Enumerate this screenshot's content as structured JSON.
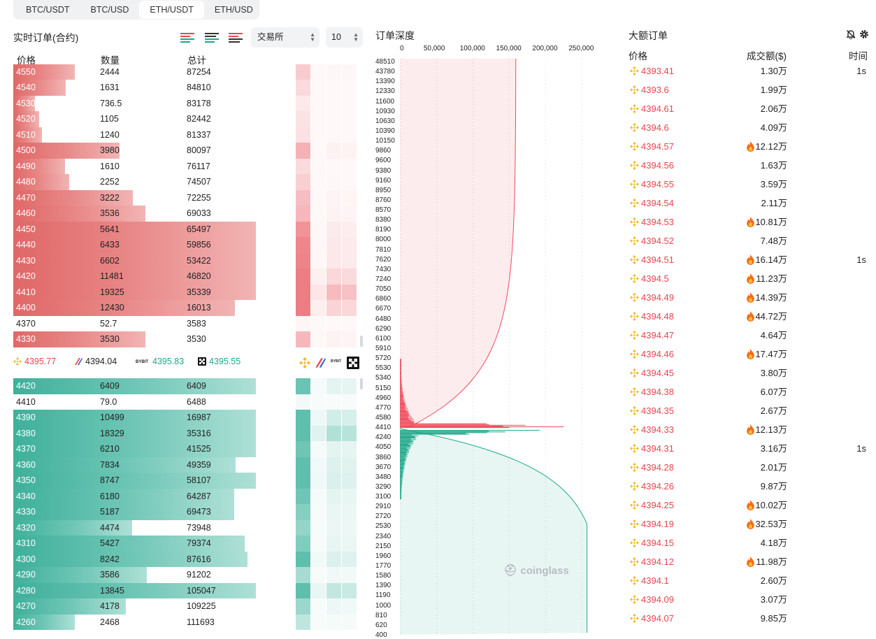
{
  "tabs": [
    "BTC/USDT",
    "BTC/USD",
    "ETH/USDT",
    "ETH/USD"
  ],
  "active_tab": 2,
  "left_panel": {
    "title": "实时订单(合约)",
    "exchange_select": "交易所",
    "depth_select": "10",
    "headers": {
      "price": "价格",
      "qty": "数量",
      "total": "总计"
    },
    "asks": [
      {
        "price": "4550",
        "qty": "2444",
        "total": "87254",
        "depth": 0.253
      },
      {
        "price": "4540",
        "qty": "1631",
        "total": "84810",
        "depth": 0.217
      },
      {
        "price": "4530",
        "qty": "736.5",
        "total": "83178",
        "depth": 0.09
      },
      {
        "price": "4520",
        "qty": "1105",
        "total": "82442",
        "depth": 0.106
      },
      {
        "price": "4510",
        "qty": "1240",
        "total": "81337",
        "depth": 0.118
      },
      {
        "price": "4500",
        "qty": "3980",
        "total": "80097",
        "depth": 0.439
      },
      {
        "price": "4490",
        "qty": "1610",
        "total": "76117",
        "depth": 0.214
      },
      {
        "price": "4480",
        "qty": "2252",
        "total": "74507",
        "depth": 0.231
      },
      {
        "price": "4470",
        "qty": "3222",
        "total": "72255",
        "depth": 0.493
      },
      {
        "price": "4460",
        "qty": "3536",
        "total": "69033",
        "depth": 0.545
      },
      {
        "price": "4450",
        "qty": "5641",
        "total": "65497",
        "depth": 1.0
      },
      {
        "price": "4440",
        "qty": "6433",
        "total": "59856",
        "depth": 1.0
      },
      {
        "price": "4430",
        "qty": "6602",
        "total": "53422",
        "depth": 1.0
      },
      {
        "price": "4420",
        "qty": "11481",
        "total": "46820",
        "depth": 1.0
      },
      {
        "price": "4410",
        "qty": "19325",
        "total": "35339",
        "depth": 1.0
      },
      {
        "price": "4400",
        "qty": "12430",
        "total": "16013",
        "depth": 0.914
      },
      {
        "price": "4370",
        "qty": "52.7",
        "total": "3583",
        "depth": 0.0
      },
      {
        "price": "4330",
        "qty": "3530",
        "total": "3530",
        "depth": 0.545
      }
    ],
    "bids": [
      {
        "price": "4420",
        "qty": "6409",
        "total": "6409",
        "depth": 1.0
      },
      {
        "price": "4410",
        "qty": "79.0",
        "total": "6488",
        "depth": 0.0
      },
      {
        "price": "4390",
        "qty": "10499",
        "total": "16987",
        "depth": 1.0
      },
      {
        "price": "4380",
        "qty": "18329",
        "total": "35316",
        "depth": 1.0
      },
      {
        "price": "4370",
        "qty": "6210",
        "total": "41525",
        "depth": 1.0
      },
      {
        "price": "4360",
        "qty": "7834",
        "total": "49359",
        "depth": 0.917
      },
      {
        "price": "4350",
        "qty": "8747",
        "total": "58107",
        "depth": 1.0
      },
      {
        "price": "4340",
        "qty": "6180",
        "total": "64287",
        "depth": 0.911
      },
      {
        "price": "4330",
        "qty": "5187",
        "total": "69473",
        "depth": 0.911
      },
      {
        "price": "4320",
        "qty": "4474",
        "total": "73948",
        "depth": 0.489
      },
      {
        "price": "4310",
        "qty": "5427",
        "total": "79374",
        "depth": 0.954
      },
      {
        "price": "4300",
        "qty": "8242",
        "total": "87616",
        "depth": 0.966
      },
      {
        "price": "4290",
        "qty": "3586",
        "total": "91202",
        "depth": 0.551
      },
      {
        "price": "4280",
        "qty": "13845",
        "total": "105047",
        "depth": 1.0
      },
      {
        "price": "4270",
        "qty": "4178",
        "total": "109225",
        "depth": 0.463
      },
      {
        "price": "4260",
        "qty": "2468",
        "total": "111693",
        "depth": 0.254
      }
    ],
    "exchange_prices": [
      {
        "exchange": "binance",
        "price": "4395.77",
        "color": "#e5464f"
      },
      {
        "exchange": "bybit-x",
        "price": "4394.04",
        "color": "#222222"
      },
      {
        "exchange": "bybit",
        "price": "4395.83",
        "color": "#1ea88a"
      },
      {
        "exchange": "okx",
        "price": "4395.55",
        "color": "#1ea88a"
      }
    ]
  },
  "depth_chart": {
    "title": "订单深度",
    "x_ticks": [
      "0",
      "50,000",
      "100,000",
      "150,000",
      "200,000",
      "250,000"
    ],
    "y_ticks": [
      "48510",
      "43780",
      "13390",
      "12330",
      "11600",
      "10930",
      "10630",
      "10390",
      "10150",
      "9860",
      "9600",
      "9380",
      "9160",
      "8950",
      "8760",
      "8570",
      "8380",
      "8190",
      "8000",
      "7810",
      "7620",
      "7430",
      "7240",
      "7050",
      "6860",
      "6670",
      "6480",
      "6290",
      "6100",
      "5910",
      "5720",
      "5530",
      "5340",
      "5150",
      "4960",
      "4770",
      "4580",
      "4410",
      "4240",
      "4050",
      "3860",
      "3670",
      "3480",
      "3290",
      "3100",
      "2910",
      "2720",
      "2530",
      "2340",
      "2150",
      "1960",
      "1770",
      "1580",
      "1390",
      "1190",
      "1000",
      "810",
      "620",
      "400"
    ],
    "watermark": "coinglass",
    "colors": {
      "ask": "#f0495a",
      "bid": "#1ea88a"
    }
  },
  "large_orders": {
    "title": "大额订单",
    "headers": {
      "price": "价格",
      "amount": "成交额($)",
      "time": "时间"
    },
    "rows": [
      {
        "price": "4393.41",
        "amount": "1.30万",
        "fire": false,
        "time": "1s"
      },
      {
        "price": "4393.6",
        "amount": "1.99万",
        "fire": false,
        "time": ""
      },
      {
        "price": "4394.61",
        "amount": "2.06万",
        "fire": false,
        "time": ""
      },
      {
        "price": "4394.6",
        "amount": "4.09万",
        "fire": false,
        "time": ""
      },
      {
        "price": "4394.57",
        "amount": "12.12万",
        "fire": true,
        "time": ""
      },
      {
        "price": "4394.56",
        "amount": "1.63万",
        "fire": false,
        "time": ""
      },
      {
        "price": "4394.55",
        "amount": "3.59万",
        "fire": false,
        "time": ""
      },
      {
        "price": "4394.54",
        "amount": "2.11万",
        "fire": false,
        "time": ""
      },
      {
        "price": "4394.53",
        "amount": "10.81万",
        "fire": true,
        "time": ""
      },
      {
        "price": "4394.52",
        "amount": "7.48万",
        "fire": false,
        "time": ""
      },
      {
        "price": "4394.51",
        "amount": "16.14万",
        "fire": true,
        "time": "1s"
      },
      {
        "price": "4394.5",
        "amount": "11.23万",
        "fire": true,
        "time": ""
      },
      {
        "price": "4394.49",
        "amount": "14.39万",
        "fire": true,
        "time": ""
      },
      {
        "price": "4394.48",
        "amount": "44.72万",
        "fire": true,
        "time": ""
      },
      {
        "price": "4394.47",
        "amount": "4.64万",
        "fire": false,
        "time": ""
      },
      {
        "price": "4394.46",
        "amount": "17.47万",
        "fire": true,
        "time": ""
      },
      {
        "price": "4394.45",
        "amount": "3.80万",
        "fire": false,
        "time": ""
      },
      {
        "price": "4394.38",
        "amount": "6.07万",
        "fire": false,
        "time": ""
      },
      {
        "price": "4394.35",
        "amount": "2.67万",
        "fire": false,
        "time": ""
      },
      {
        "price": "4394.33",
        "amount": "12.13万",
        "fire": true,
        "time": ""
      },
      {
        "price": "4394.31",
        "amount": "3.16万",
        "fire": false,
        "time": "1s"
      },
      {
        "price": "4394.28",
        "amount": "2.01万",
        "fire": false,
        "time": ""
      },
      {
        "price": "4394.26",
        "amount": "9.87万",
        "fire": false,
        "time": ""
      },
      {
        "price": "4394.25",
        "amount": "10.02万",
        "fire": true,
        "time": ""
      },
      {
        "price": "4394.19",
        "amount": "32.53万",
        "fire": true,
        "time": ""
      },
      {
        "price": "4394.15",
        "amount": "4.18万",
        "fire": false,
        "time": ""
      },
      {
        "price": "4394.12",
        "amount": "11.98万",
        "fire": true,
        "time": ""
      },
      {
        "price": "4394.1",
        "amount": "2.60万",
        "fire": false,
        "time": ""
      },
      {
        "price": "4394.09",
        "amount": "3.07万",
        "fire": false,
        "time": ""
      },
      {
        "price": "4394.07",
        "amount": "9.85万",
        "fire": false,
        "time": ""
      }
    ]
  }
}
